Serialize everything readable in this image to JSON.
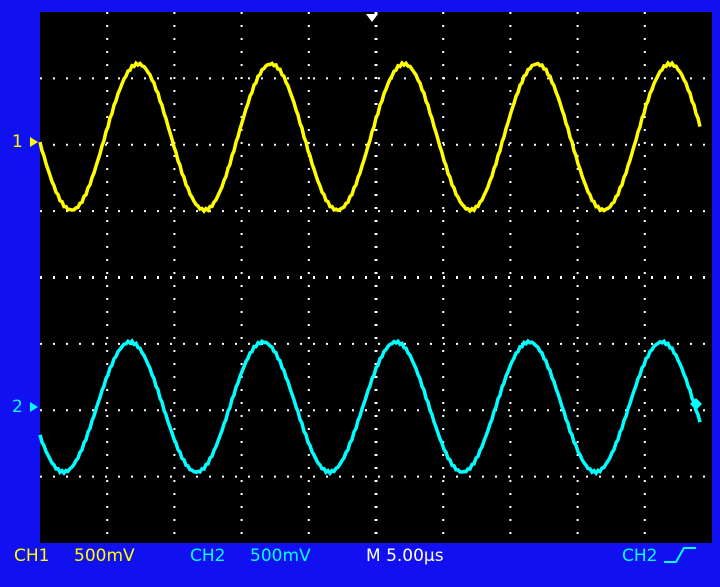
{
  "channel_markers": [
    "1",
    "2"
  ],
  "status_bar": {
    "ch1_label": "CH1",
    "ch1_scale": "500mV",
    "ch2_label": "CH2",
    "ch2_scale": "500mV",
    "timebase": "M 5.00µs",
    "trigger_source": "CH2"
  }
}
